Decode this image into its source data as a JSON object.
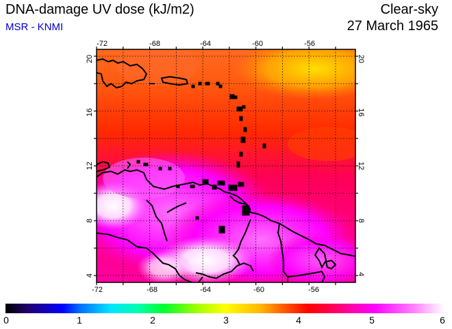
{
  "header": {
    "title": "DNA-damage UV dose (kJ/m2)",
    "subtitle": "MSR - KNMI",
    "condition": "Clear-sky",
    "date": "27 March 1965"
  },
  "map": {
    "lon_ticks": [
      "-72",
      "-68",
      "-64",
      "-60",
      "-56"
    ],
    "lat_ticks": [
      "20",
      "16",
      "12",
      "8",
      "4"
    ],
    "lon_range": [
      -72,
      -52.5
    ],
    "lat_range": [
      3.5,
      20.5
    ]
  },
  "colorbar": {
    "labels": [
      "0",
      "1",
      "2",
      "3",
      "4",
      "5",
      "6"
    ],
    "range": [
      0,
      6
    ]
  }
}
